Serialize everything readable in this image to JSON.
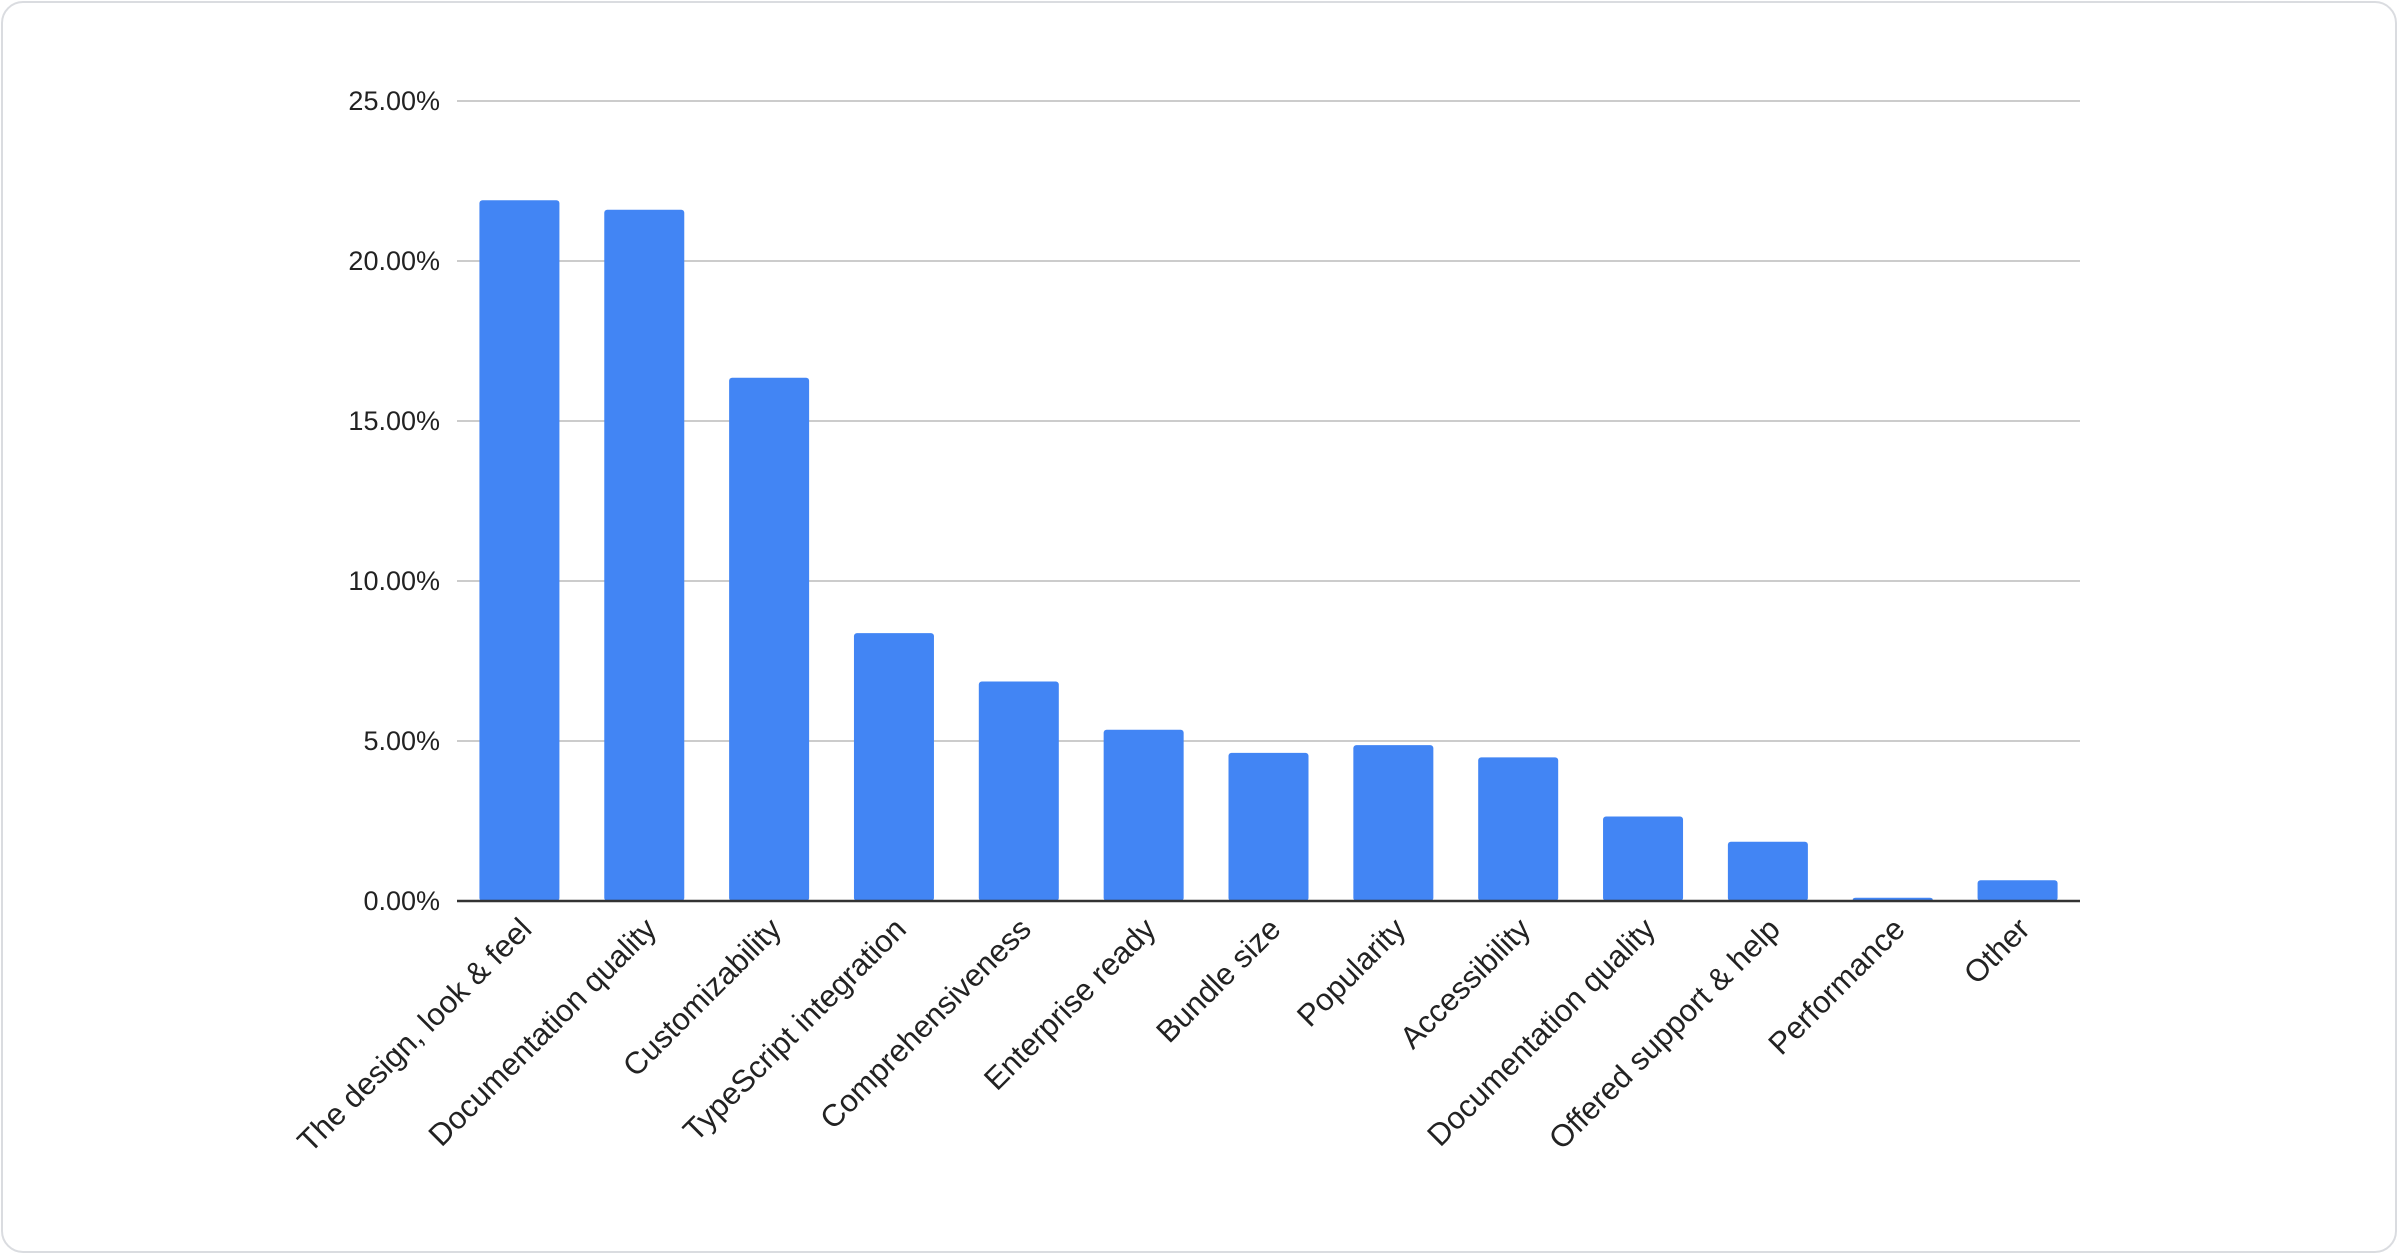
{
  "chart_data": {
    "type": "bar",
    "title": "",
    "xlabel": "",
    "ylabel": "",
    "categories": [
      "The design, look & feel",
      "Documentation quality",
      "Customizability",
      "TypeScript integration",
      "Comprehensiveness",
      "Enterprise ready",
      "Bundle size",
      "Popularity",
      "Accessibility",
      "Documentation quality",
      "Offered support & help",
      "Performance",
      "Other"
    ],
    "values": [
      21.9,
      21.6,
      16.35,
      8.37,
      6.86,
      5.35,
      4.63,
      4.87,
      4.49,
      2.64,
      1.85,
      0.1,
      0.65
    ],
    "ylim": [
      0,
      25
    ],
    "yticks": [
      0,
      5,
      10,
      15,
      20,
      25
    ],
    "ytick_labels": [
      "0.00%",
      "5.00%",
      "10.00%",
      "15.00%",
      "20.00%",
      "25.00%"
    ],
    "grid": true,
    "legend": "none",
    "bar_color": "#4285f4"
  }
}
